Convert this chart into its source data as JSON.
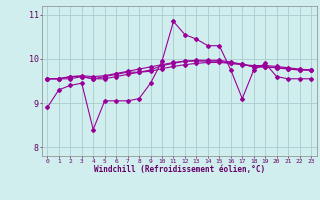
{
  "title": "",
  "xlabel": "Windchill (Refroidissement éolien,°C)",
  "ylabel": "",
  "bg_color": "#d0eeee",
  "line_color": "#990099",
  "grid_color": "#aacccc",
  "spine_color": "#888888",
  "xlim": [
    -0.5,
    23.5
  ],
  "ylim": [
    7.8,
    11.2
  ],
  "yticks": [
    8,
    9,
    10,
    11
  ],
  "xticks": [
    0,
    1,
    2,
    3,
    4,
    5,
    6,
    7,
    8,
    9,
    10,
    11,
    12,
    13,
    14,
    15,
    16,
    17,
    18,
    19,
    20,
    21,
    22,
    23
  ],
  "tick_color": "#660066",
  "series": [
    [
      8.9,
      9.3,
      9.4,
      9.45,
      8.4,
      9.05,
      9.05,
      9.05,
      9.1,
      9.45,
      9.95,
      10.85,
      10.55,
      10.45,
      10.3,
      10.3,
      9.75,
      9.1,
      9.75,
      9.9,
      9.6,
      9.55,
      9.55,
      9.55
    ],
    [
      9.55,
      9.55,
      9.55,
      9.6,
      9.55,
      9.55,
      9.6,
      9.65,
      9.7,
      9.72,
      9.78,
      9.83,
      9.87,
      9.9,
      9.92,
      9.92,
      9.9,
      9.87,
      9.85,
      9.85,
      9.83,
      9.8,
      9.77,
      9.75
    ],
    [
      9.55,
      9.55,
      9.6,
      9.62,
      9.6,
      9.62,
      9.67,
      9.72,
      9.77,
      9.82,
      9.87,
      9.92,
      9.95,
      9.97,
      9.97,
      9.97,
      9.93,
      9.88,
      9.82,
      9.82,
      9.8,
      9.77,
      9.75,
      9.75
    ],
    [
      9.55,
      9.55,
      9.6,
      9.6,
      9.55,
      9.6,
      9.65,
      9.7,
      9.7,
      9.75,
      9.85,
      9.9,
      9.95,
      9.95,
      9.95,
      9.95,
      9.9,
      9.88,
      9.82,
      9.82,
      9.8,
      9.78,
      9.75,
      9.75
    ]
  ]
}
